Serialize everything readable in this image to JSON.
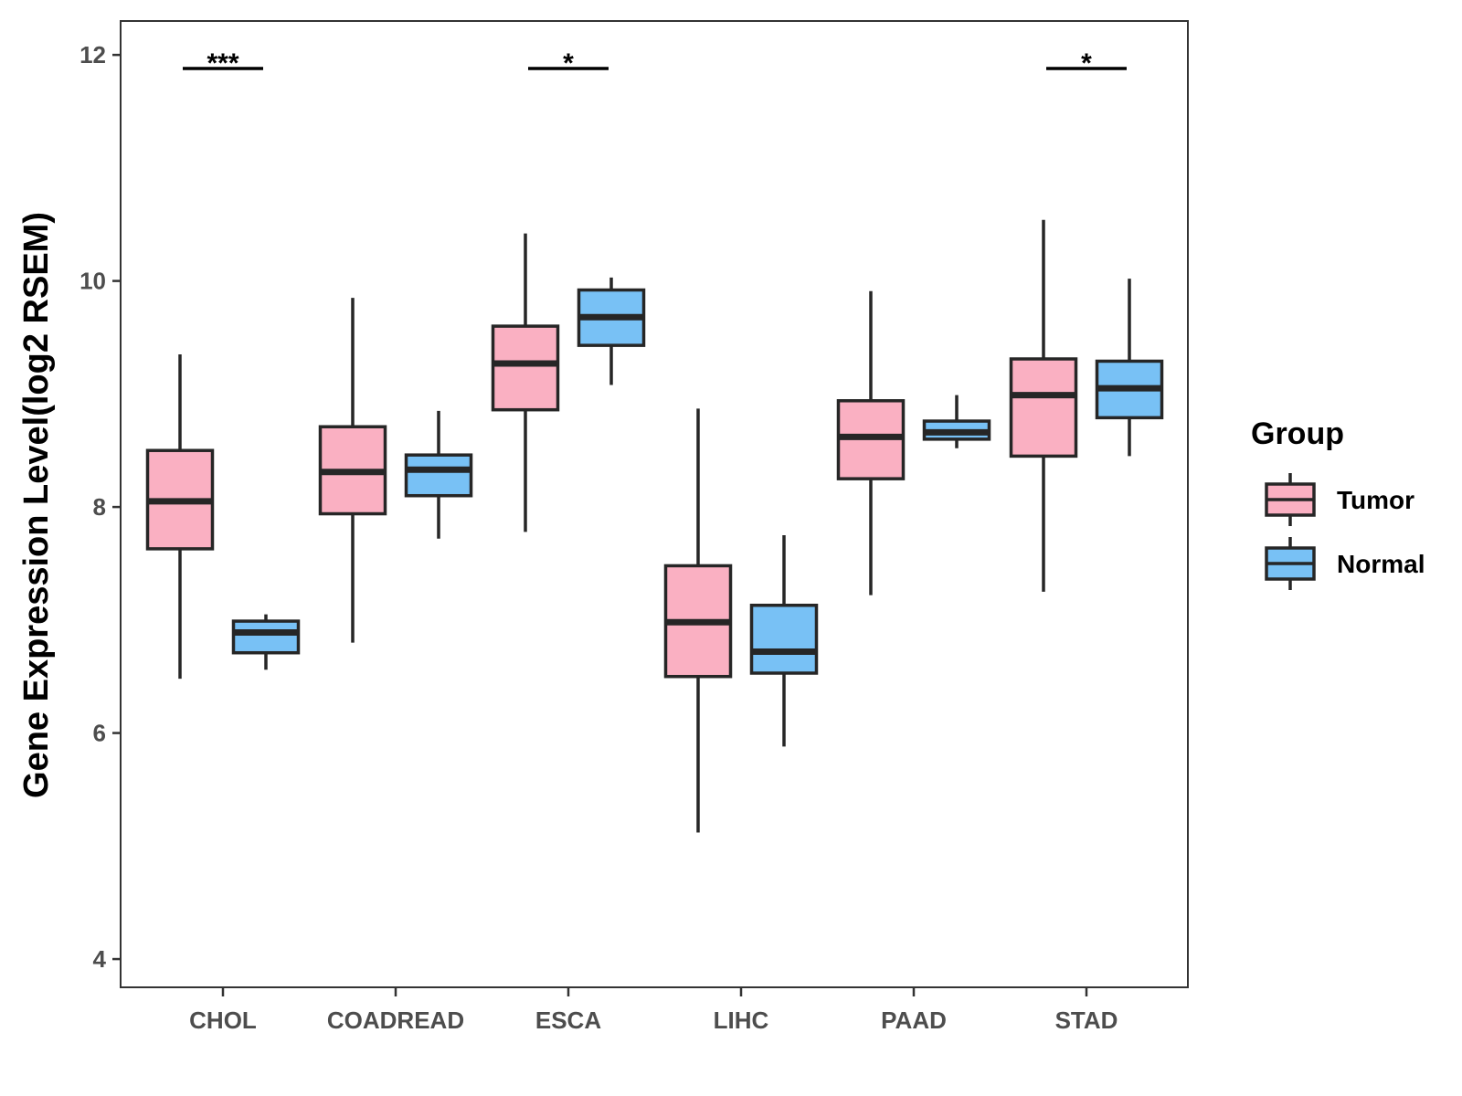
{
  "chart_data": {
    "type": "boxplot",
    "title": "",
    "xlabel": "",
    "ylabel": "Gene Expression Level(log2 RSEM)",
    "ylim": [
      3.75,
      12.3
    ],
    "yticks": [
      4,
      6,
      8,
      10,
      12
    ],
    "yticks_labels": [
      "4",
      "6",
      "8",
      "10",
      "12"
    ],
    "grid": false,
    "categories": [
      "CHOL",
      "COADREAD",
      "ESCA",
      "LIHC",
      "PAAD",
      "STAD"
    ],
    "legend": {
      "title": "Group",
      "position": "right"
    },
    "series": [
      {
        "name": "Tumor",
        "color": "#FAB0C2",
        "boxes": [
          {
            "min": 6.48,
            "q1": 7.63,
            "median": 8.05,
            "q3": 8.5,
            "max": 9.35
          },
          {
            "min": 6.8,
            "q1": 7.94,
            "median": 8.31,
            "q3": 8.71,
            "max": 9.85
          },
          {
            "min": 7.78,
            "q1": 8.86,
            "median": 9.27,
            "q3": 9.6,
            "max": 10.42
          },
          {
            "min": 5.12,
            "q1": 6.5,
            "median": 6.98,
            "q3": 7.48,
            "max": 8.87
          },
          {
            "min": 7.22,
            "q1": 8.25,
            "median": 8.62,
            "q3": 8.94,
            "max": 9.91
          },
          {
            "min": 7.25,
            "q1": 8.45,
            "median": 8.99,
            "q3": 9.31,
            "max": 10.54
          }
        ]
      },
      {
        "name": "Normal",
        "color": "#78C1F5",
        "boxes": [
          {
            "min": 6.56,
            "q1": 6.71,
            "median": 6.89,
            "q3": 6.99,
            "max": 7.05
          },
          {
            "min": 7.72,
            "q1": 8.1,
            "median": 8.33,
            "q3": 8.46,
            "max": 8.85
          },
          {
            "min": 9.08,
            "q1": 9.43,
            "median": 9.68,
            "q3": 9.92,
            "max": 10.03
          },
          {
            "min": 5.88,
            "q1": 6.53,
            "median": 6.72,
            "q3": 7.13,
            "max": 7.75
          },
          {
            "min": 8.52,
            "q1": 8.6,
            "median": 8.66,
            "q3": 8.76,
            "max": 8.99
          },
          {
            "min": 8.45,
            "q1": 8.79,
            "median": 9.05,
            "q3": 9.29,
            "max": 10.02
          }
        ]
      }
    ],
    "annotations": [
      {
        "category": "CHOL",
        "label": "***",
        "y": 11.88
      },
      {
        "category": "ESCA",
        "label": "*",
        "y": 11.88
      },
      {
        "category": "STAD",
        "label": "*",
        "y": 11.88
      }
    ]
  }
}
